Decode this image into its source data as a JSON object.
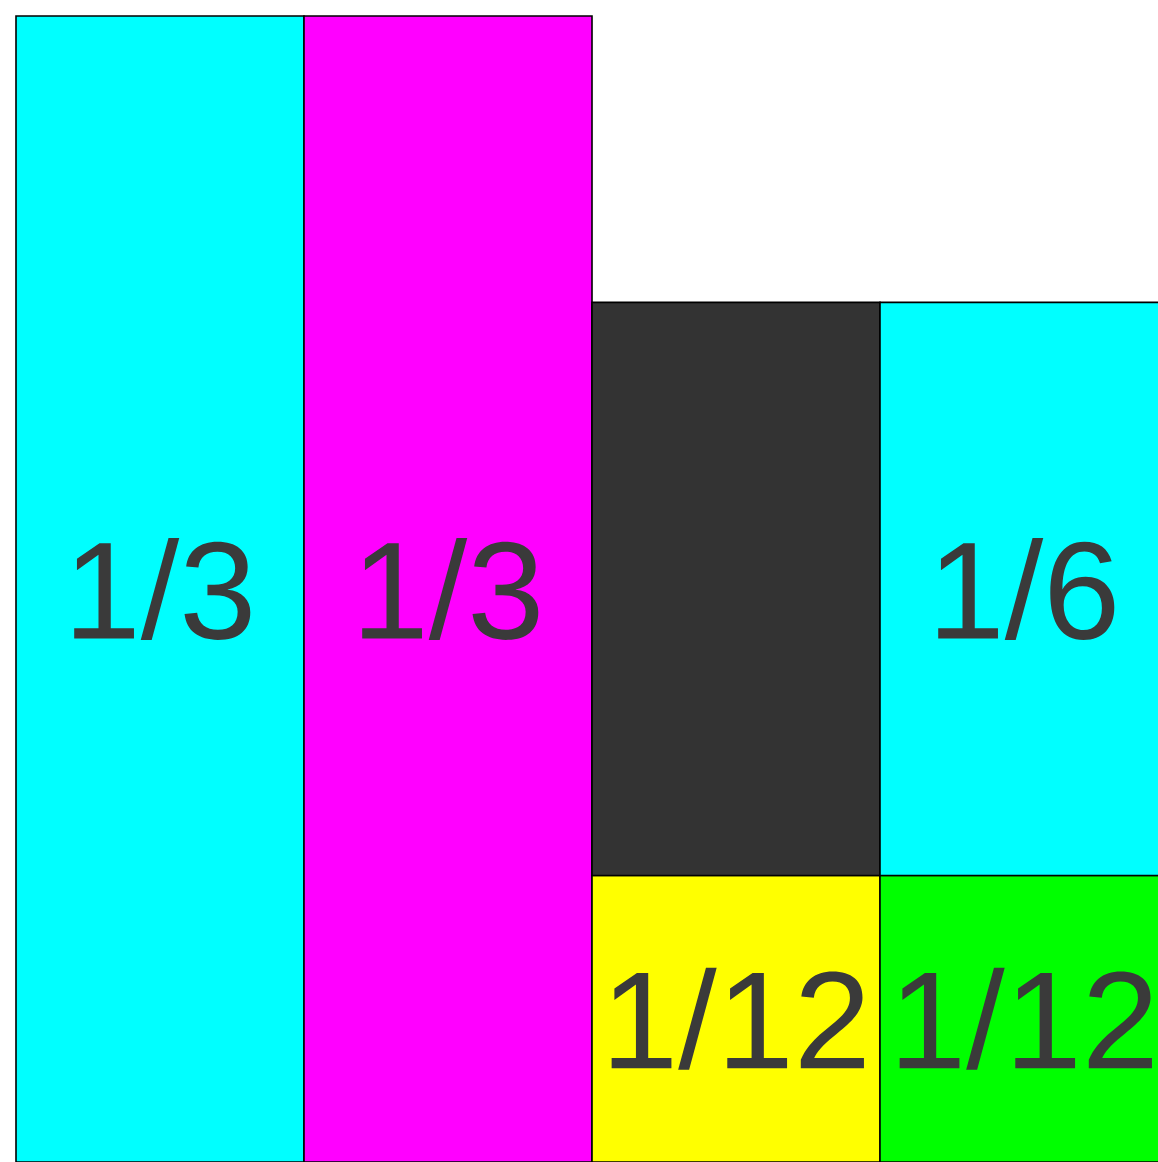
{
  "chart_data": {
    "type": "bar",
    "stacked": true,
    "categories": [
      null,
      null,
      null,
      null
    ],
    "series": [
      {
        "colors": [
          "#00ffff",
          "#ff00ff",
          "#ffff00",
          "#00ff00"
        ],
        "values": [
          0.3333,
          0.3333,
          0.0833,
          0.0833
        ],
        "value_labels": [
          "1/3",
          "1/3",
          "1/12",
          "1/12"
        ]
      },
      {
        "colors": [
          null,
          null,
          "#333333",
          "#00ffff"
        ],
        "values": [
          null,
          null,
          0.1667,
          0.1667
        ],
        "value_labels": [
          null,
          null,
          null,
          "1/6"
        ]
      }
    ]
  }
}
